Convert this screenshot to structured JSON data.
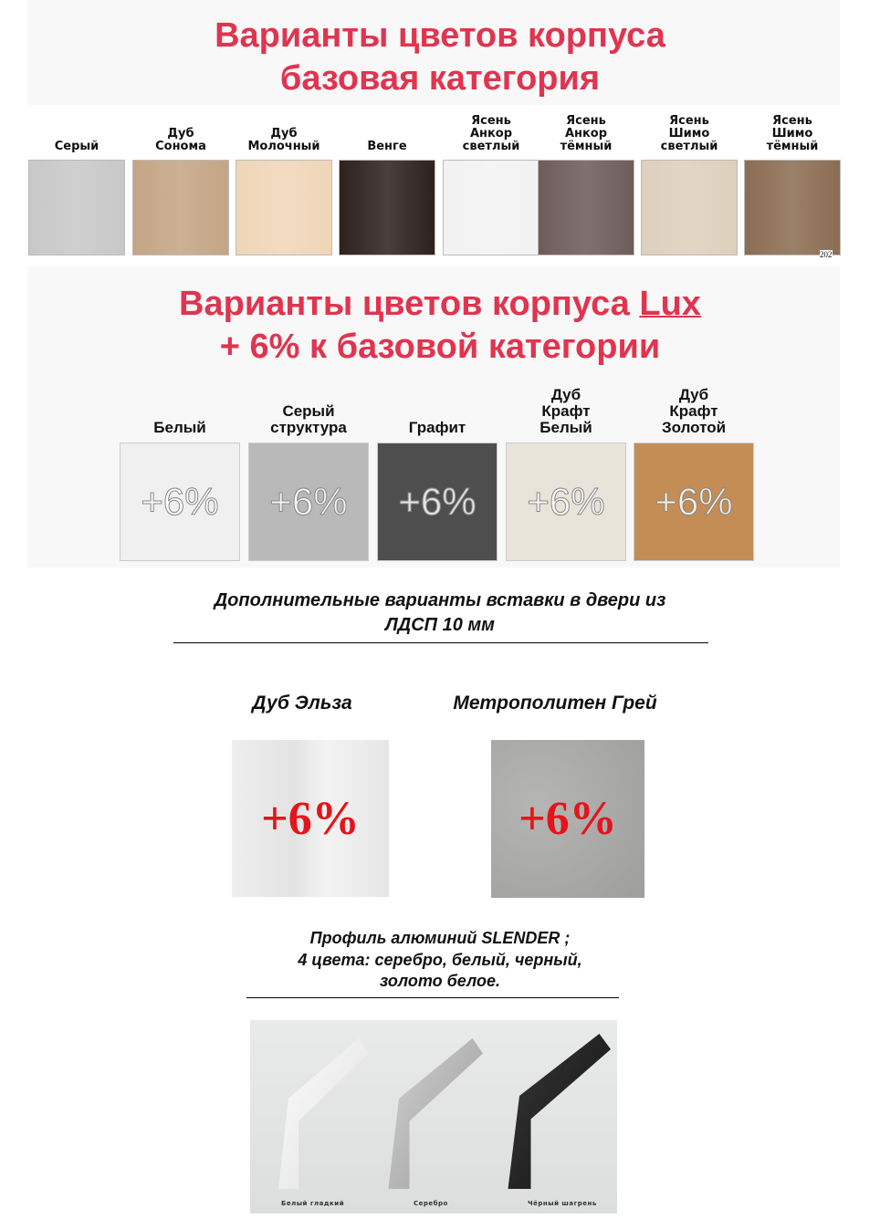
{
  "base": {
    "title_line1": "Варианты цветов корпуса",
    "title_line2": "базовая категория",
    "colors": [
      {
        "label": "Серый",
        "color": "#c8c8c8"
      },
      {
        "label": "Дуб\nСонома",
        "color": "#c4a585"
      },
      {
        "label": "Дуб\nМолочный",
        "color": "#f0d6b8"
      },
      {
        "label": "Венге",
        "color": "#2e211e"
      },
      {
        "label": "Ясень\nАнкор\nсветлый",
        "color": "#f2f2f2"
      },
      {
        "label": "Ясень\nАнкор\nтёмный",
        "color": "#6d5c5a"
      },
      {
        "label": "Ясень\nШимо\nсветлый",
        "color": "#ddd0bc"
      },
      {
        "label": "Ясень\nШимо\nтёмный",
        "color": "#8b6d52"
      }
    ],
    "year_mark": "202"
  },
  "lux": {
    "title_line1": "Варианты цветов корпуса ",
    "title_lux": "Lux",
    "title_line2": "+ 6% к базовой категории",
    "badge": "+6%",
    "colors": [
      {
        "label": "Белый",
        "color": "#f0f0f0"
      },
      {
        "label": "Серый\nструктура",
        "color": "#b9b9b9"
      },
      {
        "label": "Графит",
        "color": "#4e4e4e"
      },
      {
        "label": "Дуб\nКрафт\nБелый",
        "color": "#e8e4da"
      },
      {
        "label": "Дуб\nКрафт\nЗолотой",
        "color": "#c48d55"
      }
    ]
  },
  "inserts": {
    "title_line1": "Дополнительные варианты вставки в двери из",
    "title_line2": "ЛДСП 10 мм",
    "items": [
      {
        "label": "Дуб Эльза",
        "badge": "+6%",
        "color": "#ececec"
      },
      {
        "label": "Метрополитен Грей",
        "badge": "+6%",
        "color": "#a9a9a7"
      }
    ]
  },
  "profile": {
    "line1": "Профиль алюминий SLENDER ;",
    "line2": "4 цвета: серебро, белый, черный,",
    "line3": "золото белое.",
    "captions": [
      "Белый гладкий",
      "Серебро",
      "Чёрный шагрень"
    ]
  }
}
